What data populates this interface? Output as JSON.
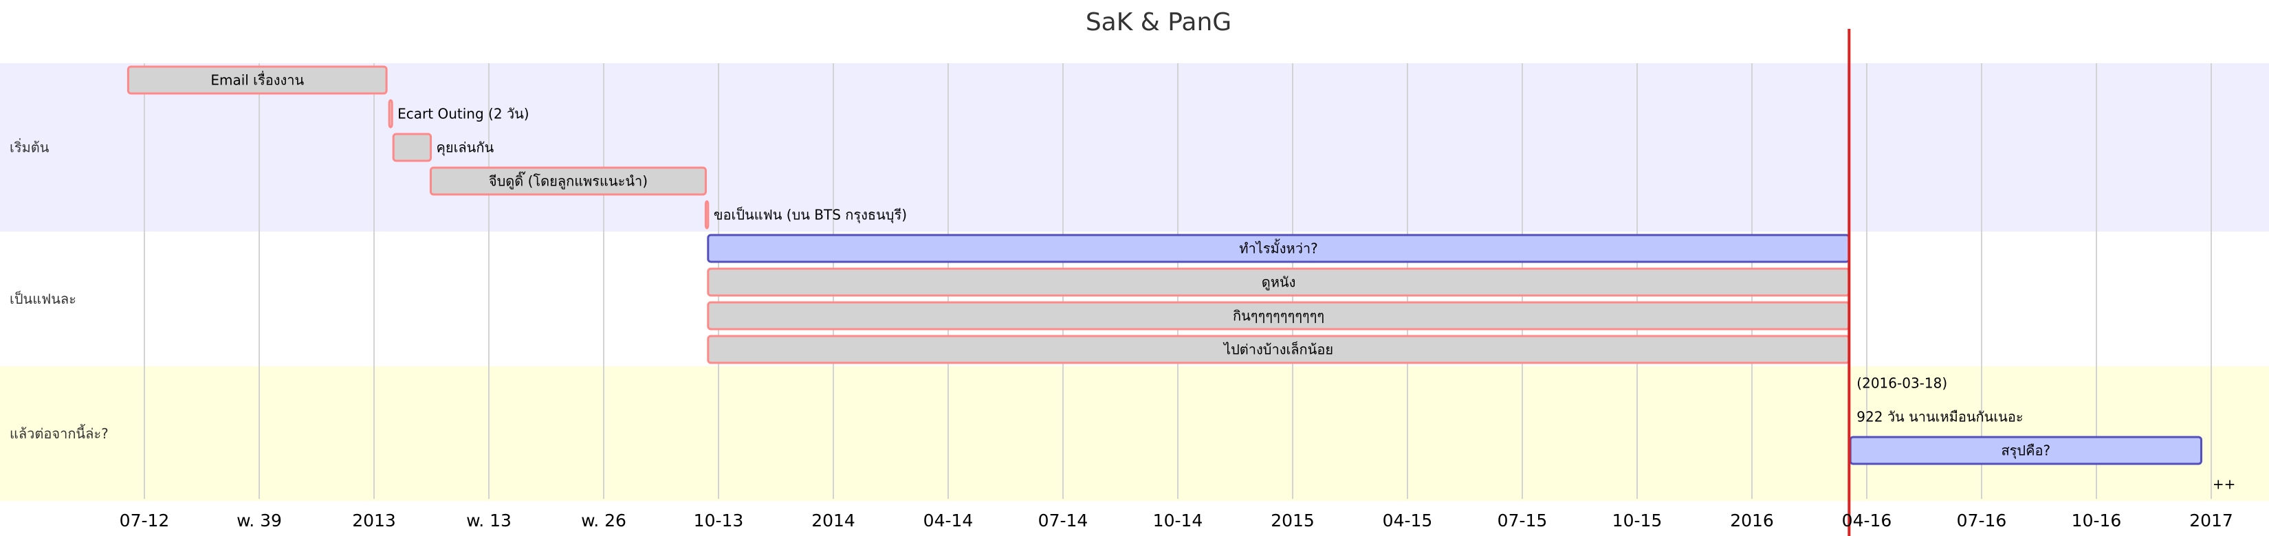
{
  "chart_data": {
    "type": "gantt",
    "title": "SaK & PanG",
    "x_ticks": [
      "07-12",
      "w. 39",
      "2013",
      "w. 13",
      "w. 26",
      "10-13",
      "2014",
      "04-14",
      "07-14",
      "10-14",
      "2015",
      "04-15",
      "07-15",
      "10-15",
      "2016",
      "04-16",
      "07-16",
      "10-16",
      "2017"
    ],
    "x_range": [
      "2012-05-30",
      "2017-02-18"
    ],
    "today": "2016-03-18",
    "grid": true,
    "colors": {
      "section_0_bg": "#eeeeff",
      "section_1_bg": "#ffffff",
      "section_2_bg": "#ffffdd",
      "task_done_fill": "#d3d3d3",
      "task_done_stroke": "#ff8888",
      "task_active_fill": "#bfc7ff",
      "task_active_stroke": "#534fbc",
      "today_line": "#dd2222"
    },
    "sections": [
      {
        "name": "เริ่มต้น",
        "tasks": [
          {
            "label": "Email เรื่องงาน",
            "start": "2012-06-19",
            "end": "2013-01-10",
            "status": "done",
            "label_position": "inside"
          },
          {
            "label": "Ecart Outing (2 วัน)",
            "start": "2013-01-12",
            "end": "2013-01-14",
            "status": "done",
            "label_position": "outside"
          },
          {
            "label": "คุยเล่นกัน",
            "start": "2013-01-15",
            "end": "2013-02-11",
            "status": "done",
            "label_position": "outside"
          },
          {
            "label": "จีบดูดิ๊ (โดยลูกแพรแนะนำ)",
            "start": "2013-02-11",
            "end": "2013-09-20",
            "status": "done",
            "label_position": "inside"
          },
          {
            "label": "ขอเป็นแฟน (บน BTS กรุงธนบุรี)",
            "start": "2013-09-20",
            "end": "2013-09-22",
            "status": "done",
            "label_position": "outside"
          }
        ]
      },
      {
        "name": "เป็นแฟนละ",
        "tasks": [
          {
            "label": "ทำไรมั้งหว่า?",
            "start": "2013-09-22",
            "end": "2016-03-18",
            "status": "active",
            "label_position": "inside"
          },
          {
            "label": "ดูหนัง",
            "start": "2013-09-22",
            "end": "2016-03-18",
            "status": "done",
            "label_position": "inside"
          },
          {
            "label": "กินๆๆๆๆๆๆๆๆๆๆ",
            "start": "2013-09-22",
            "end": "2016-03-18",
            "status": "done",
            "label_position": "inside"
          },
          {
            "label": "ไปต่างบ้างเล็กน้อย",
            "start": "2013-09-22",
            "end": "2016-03-18",
            "status": "done",
            "label_position": "inside"
          }
        ]
      },
      {
        "name": "แล้วต่อจากนี้ล่ะ?",
        "tasks": [
          {
            "label": "(2016-03-18)",
            "start": "2016-03-18",
            "end": "2016-03-18",
            "status": "milestone",
            "label_position": "outside"
          },
          {
            "label": "922 วัน นานเหมือนกันเนอะ",
            "start": "2016-03-18",
            "end": "2016-03-18",
            "status": "note",
            "label_position": "outside"
          },
          {
            "label": "สรุปคือ?",
            "start": "2016-03-19",
            "end": "2016-12-24",
            "status": "active",
            "label_position": "inside"
          },
          {
            "label": "++",
            "start": "2016-12-27",
            "end": "2016-12-27",
            "status": "note",
            "label_position": "outside"
          }
        ]
      }
    ]
  }
}
